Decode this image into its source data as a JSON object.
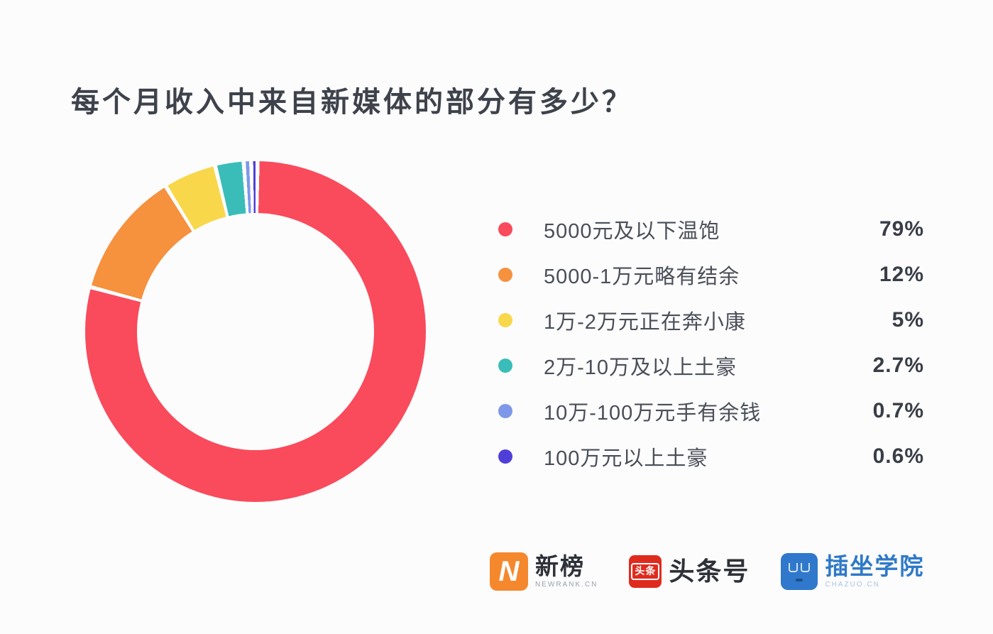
{
  "title": "每个月收入中来自新媒体的部分有多少？",
  "chart_data": {
    "type": "pie",
    "variant": "donut",
    "title": "每个月收入中来自新媒体的部分有多少？",
    "direction": "clockwise",
    "start_angle_deg": 0,
    "legend_position": "right",
    "segment_gap_color": "#FFFFFF",
    "segments": [
      {
        "label": "5000元及以下温饱",
        "value_pct": 79,
        "display": "79%",
        "color": "#F94B5C"
      },
      {
        "label": "5000-1万元略有结余",
        "value_pct": 12,
        "display": "12%",
        "color": "#F6913E"
      },
      {
        "label": "1万-2万元正在奔小康",
        "value_pct": 5,
        "display": "5%",
        "color": "#F8D74A"
      },
      {
        "label": "2万-10万及以上土豪",
        "value_pct": 2.7,
        "display": "2.7%",
        "color": "#3ABDB8"
      },
      {
        "label": "10万-100万元手有余钱",
        "value_pct": 0.7,
        "display": "0.7%",
        "color": "#7D97E9"
      },
      {
        "label": "100万元以上土豪",
        "value_pct": 0.6,
        "display": "0.6%",
        "color": "#4F3FD8"
      }
    ]
  },
  "footer": {
    "logos": [
      {
        "name": "newrank",
        "icon_glyph": "N",
        "icon_color": "#F5882D",
        "title": "新榜",
        "subtitle": "NEWRANK.CN"
      },
      {
        "name": "toutiao",
        "icon_glyph": "头条",
        "icon_color": "#DF2B1E",
        "title": "头条号",
        "subtitle": ""
      },
      {
        "name": "chazuo",
        "icon_glyph": "",
        "icon_color": "#2F78CC",
        "title": "插坐学院",
        "subtitle": "CHAZUO.CN"
      }
    ]
  }
}
